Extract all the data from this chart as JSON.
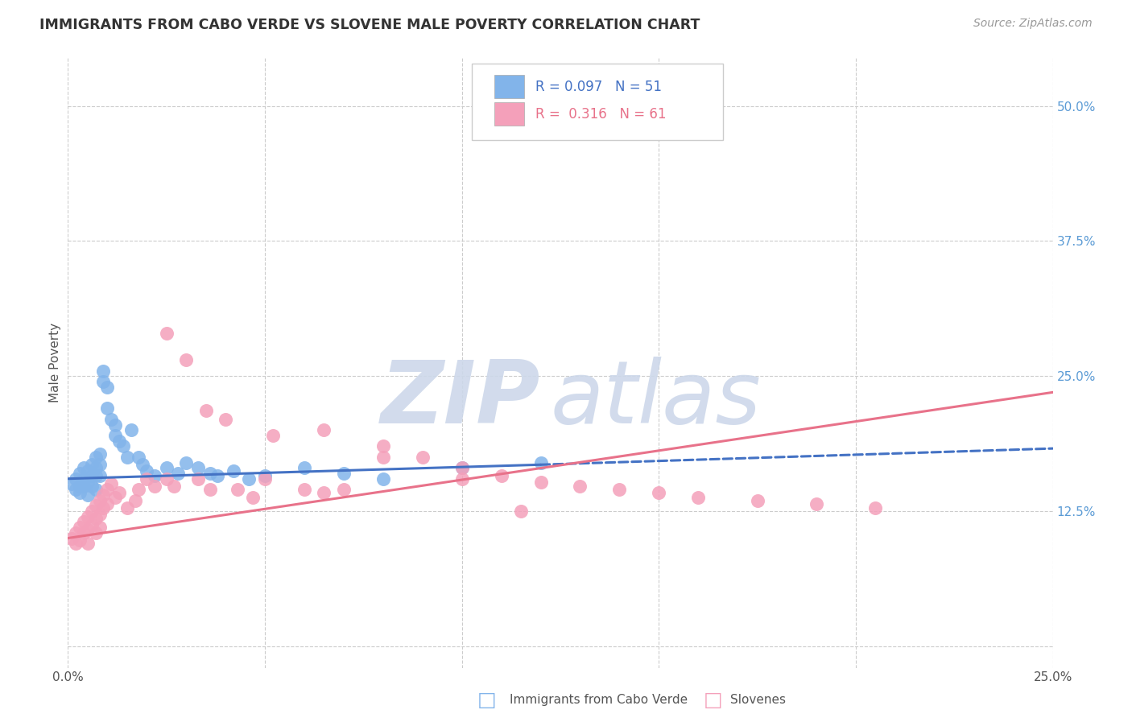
{
  "title": "IMMIGRANTS FROM CABO VERDE VS SLOVENE MALE POVERTY CORRELATION CHART",
  "source": "Source: ZipAtlas.com",
  "ylabel": "Male Poverty",
  "xlim": [
    0.0,
    0.25
  ],
  "ylim": [
    -0.02,
    0.545
  ],
  "xticks": [
    0.0,
    0.05,
    0.1,
    0.15,
    0.2,
    0.25
  ],
  "xtick_labels": [
    "0.0%",
    "",
    "",
    "",
    "",
    "25.0%"
  ],
  "yticks": [
    0.0,
    0.125,
    0.25,
    0.375,
    0.5
  ],
  "ytick_labels": [
    "",
    "12.5%",
    "25.0%",
    "37.5%",
    "50.0%"
  ],
  "blue_R": 0.097,
  "blue_N": 51,
  "pink_R": 0.316,
  "pink_N": 61,
  "blue_color": "#82b4ea",
  "pink_color": "#f4a0ba",
  "blue_line_color": "#4472c4",
  "pink_line_color": "#e8728a",
  "grid_color": "#cccccc",
  "watermark_color": "#cdd8ea",
  "legend_label_blue": "Immigrants from Cabo Verde",
  "legend_label_pink": "Slovenes",
  "blue_scatter_x": [
    0.001,
    0.002,
    0.002,
    0.003,
    0.003,
    0.003,
    0.004,
    0.004,
    0.004,
    0.005,
    0.005,
    0.005,
    0.006,
    0.006,
    0.006,
    0.007,
    0.007,
    0.007,
    0.007,
    0.008,
    0.008,
    0.008,
    0.009,
    0.009,
    0.01,
    0.01,
    0.011,
    0.012,
    0.012,
    0.013,
    0.014,
    0.015,
    0.016,
    0.018,
    0.019,
    0.02,
    0.022,
    0.025,
    0.028,
    0.03,
    0.033,
    0.036,
    0.038,
    0.042,
    0.046,
    0.05,
    0.06,
    0.07,
    0.08,
    0.1,
    0.12
  ],
  "blue_scatter_y": [
    0.15,
    0.155,
    0.145,
    0.16,
    0.148,
    0.142,
    0.165,
    0.155,
    0.148,
    0.162,
    0.152,
    0.14,
    0.168,
    0.158,
    0.148,
    0.175,
    0.165,
    0.158,
    0.145,
    0.178,
    0.168,
    0.158,
    0.255,
    0.245,
    0.24,
    0.22,
    0.21,
    0.205,
    0.195,
    0.19,
    0.185,
    0.175,
    0.2,
    0.175,
    0.168,
    0.162,
    0.158,
    0.165,
    0.16,
    0.17,
    0.165,
    0.16,
    0.158,
    0.162,
    0.155,
    0.158,
    0.165,
    0.16,
    0.155,
    0.165,
    0.17
  ],
  "pink_scatter_x": [
    0.001,
    0.002,
    0.002,
    0.003,
    0.003,
    0.004,
    0.004,
    0.005,
    0.005,
    0.005,
    0.006,
    0.006,
    0.007,
    0.007,
    0.007,
    0.008,
    0.008,
    0.008,
    0.009,
    0.009,
    0.01,
    0.01,
    0.011,
    0.012,
    0.013,
    0.015,
    0.017,
    0.018,
    0.02,
    0.022,
    0.025,
    0.027,
    0.03,
    0.033,
    0.036,
    0.04,
    0.043,
    0.047,
    0.052,
    0.06,
    0.065,
    0.07,
    0.08,
    0.09,
    0.1,
    0.11,
    0.12,
    0.13,
    0.14,
    0.15,
    0.16,
    0.175,
    0.19,
    0.205,
    0.025,
    0.035,
    0.05,
    0.065,
    0.08,
    0.1,
    0.115
  ],
  "pink_scatter_y": [
    0.1,
    0.105,
    0.095,
    0.11,
    0.098,
    0.115,
    0.105,
    0.12,
    0.108,
    0.095,
    0.125,
    0.112,
    0.13,
    0.118,
    0.105,
    0.135,
    0.122,
    0.11,
    0.14,
    0.128,
    0.145,
    0.132,
    0.15,
    0.138,
    0.142,
    0.128,
    0.135,
    0.145,
    0.155,
    0.148,
    0.155,
    0.148,
    0.265,
    0.155,
    0.145,
    0.21,
    0.145,
    0.138,
    0.195,
    0.145,
    0.2,
    0.145,
    0.185,
    0.175,
    0.165,
    0.158,
    0.152,
    0.148,
    0.145,
    0.142,
    0.138,
    0.135,
    0.132,
    0.128,
    0.29,
    0.218,
    0.155,
    0.142,
    0.175,
    0.155,
    0.125
  ],
  "blue_line_x0": 0.0,
  "blue_line_x_solid_end": 0.12,
  "blue_line_x1": 0.25,
  "blue_line_y0": 0.155,
  "blue_line_y_solid_end": 0.168,
  "blue_line_y1": 0.183,
  "pink_line_x0": 0.0,
  "pink_line_x1": 0.25,
  "pink_line_y0": 0.1,
  "pink_line_y1": 0.235
}
